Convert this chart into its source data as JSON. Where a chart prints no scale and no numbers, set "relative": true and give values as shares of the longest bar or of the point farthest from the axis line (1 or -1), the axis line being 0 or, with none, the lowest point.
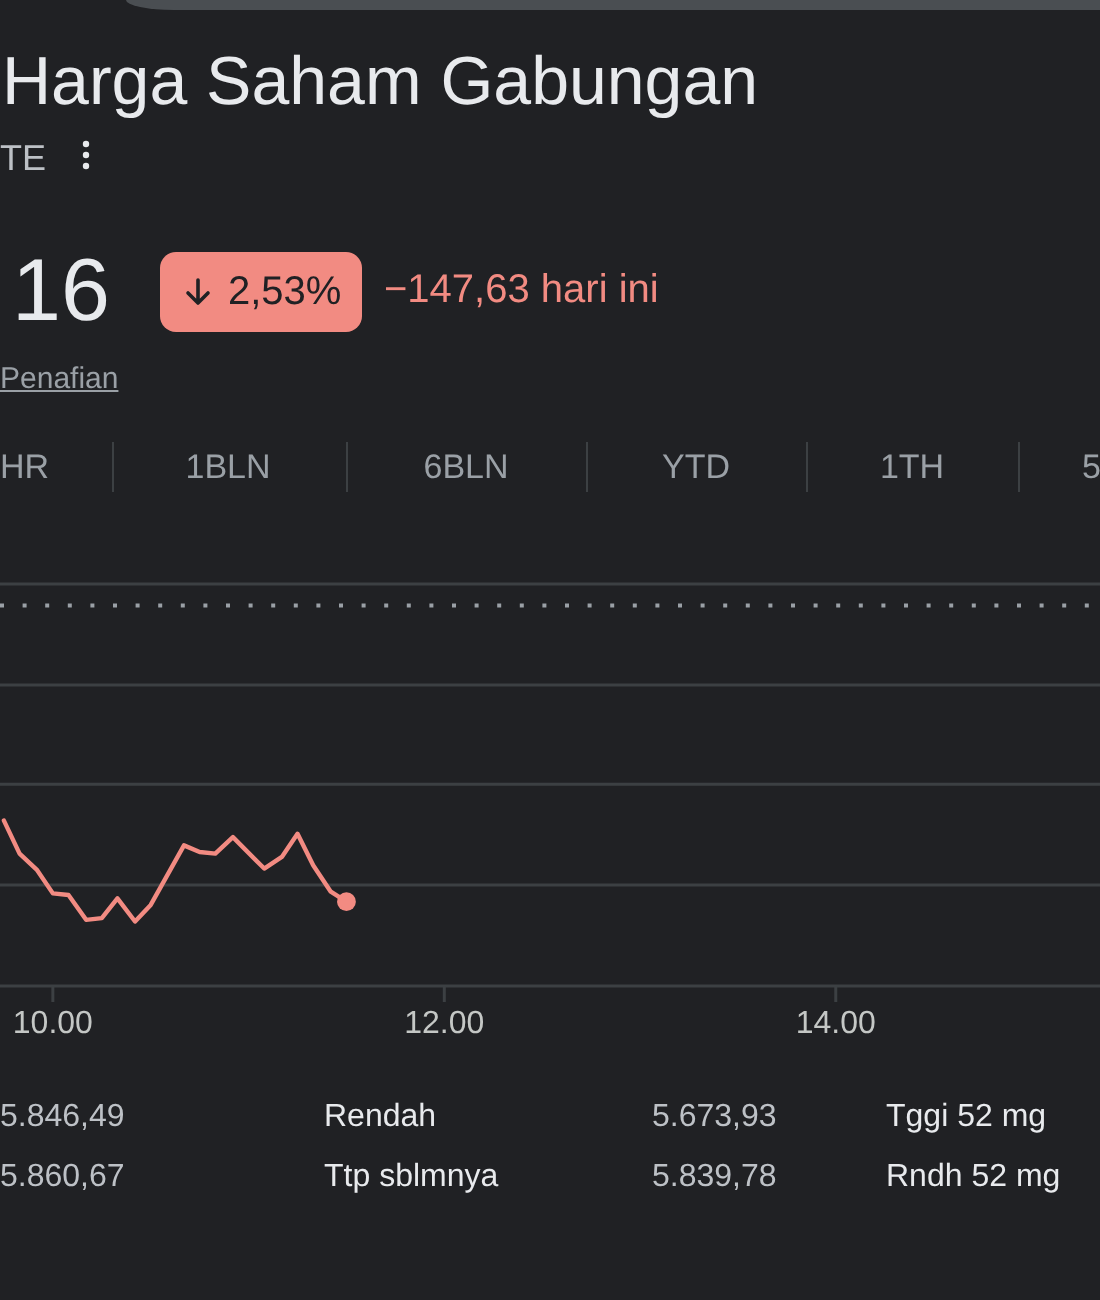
{
  "chart_data": {
    "type": "line",
    "title": "Harga Saham Gabungan",
    "subtitle": "TE",
    "relative": true,
    "xlim": [
      9.73,
      15.35
    ],
    "xticks": [
      {
        "value": 10,
        "label": "10.00"
      },
      {
        "value": 12,
        "label": "12.00"
      },
      {
        "value": 14,
        "label": "14.00"
      }
    ],
    "ref_lines": [
      {
        "axis": "y",
        "value": 0.61,
        "line_style": "solid",
        "color": "#3c4043"
      },
      {
        "axis": "y",
        "value": 1.22,
        "line_style": "solid",
        "color": "#3c4043"
      },
      {
        "axis": "y",
        "value": 1.82,
        "line_style": "solid",
        "color": "#3c4043"
      },
      {
        "axis": "y",
        "value": 2.43,
        "line_style": "solid",
        "color": "#3c4043"
      },
      {
        "axis": "y",
        "value": 2.3,
        "line_style": "dotted",
        "color": "#9aa0a6"
      }
    ],
    "series": [
      {
        "color": "#f28b82",
        "x": [
          9.75,
          9.83,
          9.92,
          10,
          10.08,
          10.17,
          10.25,
          10.33,
          10.42,
          10.5,
          10.67,
          10.75,
          10.83,
          10.92,
          11.08,
          11.17,
          11.25,
          11.33,
          11.42,
          11.5
        ],
        "values": [
          1,
          0.8,
          0.7,
          0.56,
          0.55,
          0.4,
          0.41,
          0.53,
          0.39,
          0.49,
          0.85,
          0.81,
          0.8,
          0.9,
          0.71,
          0.78,
          0.92,
          0.73,
          0.57,
          0.51
        ]
      },
      {
        "type": "scatter",
        "color": "#f28b82",
        "marker": "circle",
        "x": [
          11.5
        ],
        "values": [
          0.51
        ]
      }
    ],
    "annotations": [
      "16",
      "2,53%",
      "−147,63 hari ini",
      "Penafian",
      "HR",
      "1BLN",
      "6BLN",
      "YTD",
      "1TH",
      "5",
      "5.846,49",
      "Rendah",
      "5.673,93",
      "Tggi 52 mg",
      "5.860,67",
      "Ttp sblmnya",
      "5.839,78",
      "Rndh 52 mg"
    ]
  }
}
